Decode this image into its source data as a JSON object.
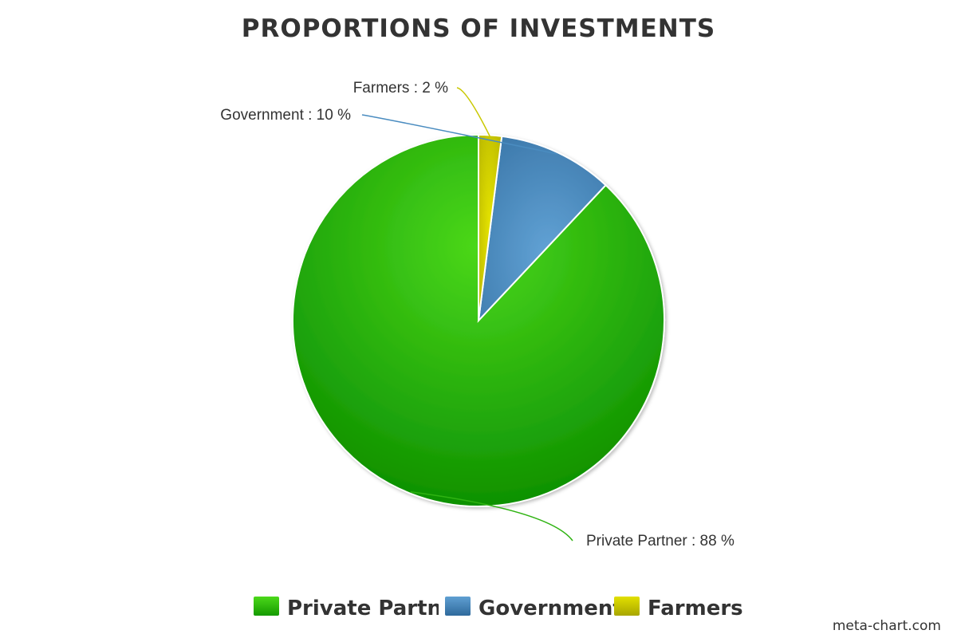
{
  "chart_data": {
    "type": "pie",
    "title": "PROPORTIONS OF INVESTMENTS",
    "categories": [
      "Private Partner",
      "Government",
      "Farmers"
    ],
    "values": [
      88,
      10,
      2
    ],
    "unit": "%",
    "colors": [
      "#2fb312",
      "#4a8cc0",
      "#c9c800"
    ],
    "labels": [
      "Private Partner : 88 %",
      "Government : 10 %",
      "Farmers : 2 %"
    ],
    "legend": {
      "placement": "bottom",
      "entries": [
        "Private Partner",
        "Government",
        "Farmers"
      ]
    }
  },
  "credit": "meta-chart.com"
}
